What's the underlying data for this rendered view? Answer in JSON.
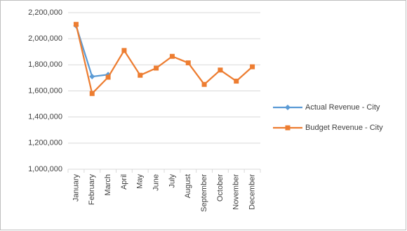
{
  "chart_data": {
    "type": "line",
    "categories": [
      "January",
      "February",
      "March",
      "April",
      "May",
      "June",
      "July",
      "August",
      "September",
      "October",
      "November",
      "December"
    ],
    "series": [
      {
        "name": "Actual Revenue - City",
        "color": "#5b9bd5",
        "marker": "diamond",
        "values": [
          2100000,
          1710000,
          1725000,
          null,
          null,
          null,
          null,
          null,
          null,
          null,
          null,
          null
        ]
      },
      {
        "name": "Budget Revenue - City",
        "color": "#ed7d31",
        "marker": "square",
        "values": [
          2110000,
          1580000,
          1705000,
          1910000,
          1720000,
          1775000,
          1865000,
          1815000,
          1650000,
          1760000,
          1675000,
          1785000
        ]
      }
    ],
    "ylim": [
      1000000,
      2200000
    ],
    "yticks": [
      {
        "value": 1000000,
        "label": "1,000,000"
      },
      {
        "value": 1200000,
        "label": "1,200,000"
      },
      {
        "value": 1400000,
        "label": "1,400,000"
      },
      {
        "value": 1600000,
        "label": "1,600,000"
      },
      {
        "value": 1800000,
        "label": "1,800,000"
      },
      {
        "value": 2000000,
        "label": "2,000,000"
      },
      {
        "value": 2200000,
        "label": "2,200,000"
      }
    ],
    "grid": true,
    "legend": "right"
  }
}
